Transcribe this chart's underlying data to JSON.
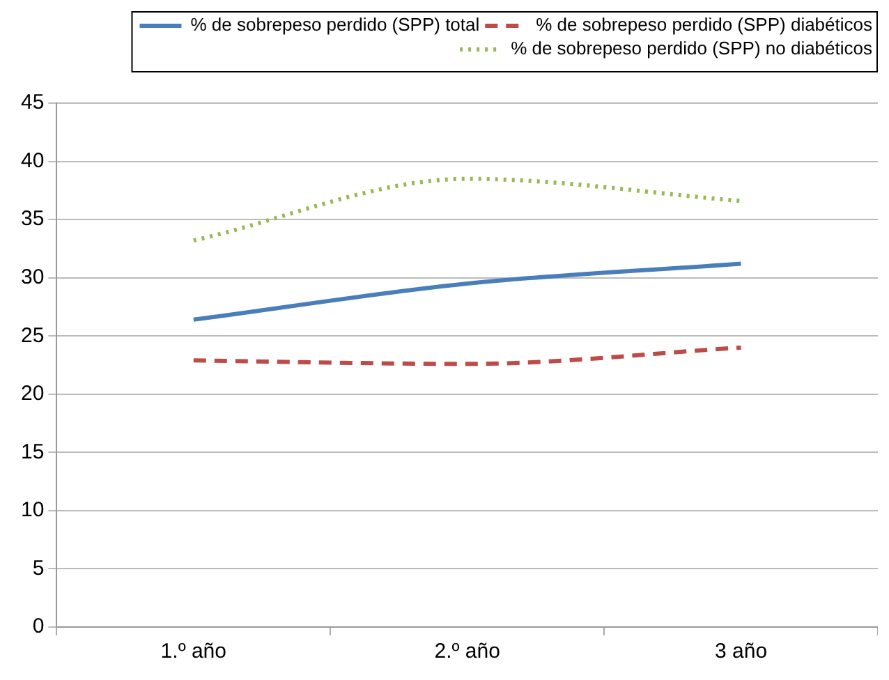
{
  "chart_data": {
    "type": "line",
    "categories": [
      "1.º año",
      "2.º año",
      "3 año"
    ],
    "series": [
      {
        "name": "% de sobrepeso perdido (SPP) total",
        "color": "#4a7ebb",
        "values": [
          26.4,
          29.5,
          31.2
        ],
        "line_style": "solid"
      },
      {
        "name": "% de sobrepeso perdido (SPP) diabéticos",
        "color": "#be4b48",
        "values": [
          22.9,
          22.6,
          24.0
        ],
        "line_style": "dashed"
      },
      {
        "name": "% de sobrepeso perdido (SPP) no diabéticos",
        "color": "#98b954",
        "values": [
          33.2,
          38.5,
          36.6
        ],
        "line_style": "dotted"
      }
    ],
    "ylim": [
      0,
      45
    ],
    "yticks": [
      0,
      5,
      10,
      15,
      20,
      25,
      30,
      35,
      40,
      45
    ],
    "grid": "y",
    "legend": "top right",
    "marker": "none"
  }
}
